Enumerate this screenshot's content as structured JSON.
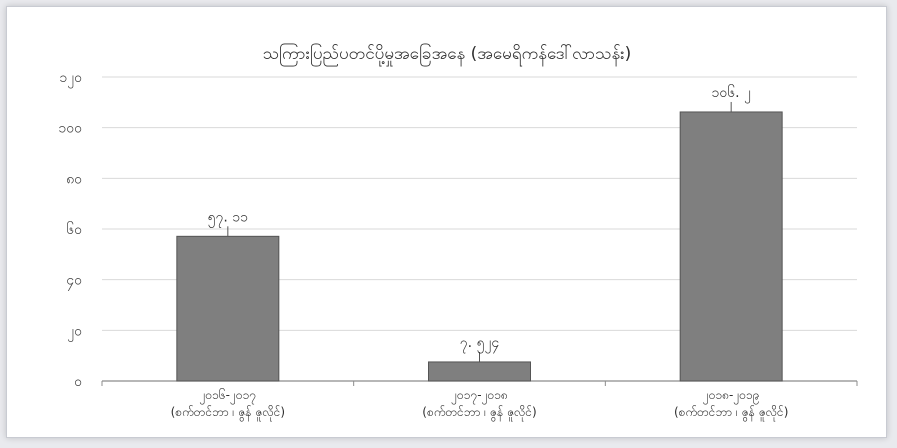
{
  "chart_data": {
    "type": "bar",
    "title": "သကြားပြည်ပတင်ပို့မှုအခြေအနေ (အမေရိကန်ဒေါ်လာသန်း)",
    "xlabel": "",
    "ylabel": "",
    "ylim": [
      0,
      120
    ],
    "yticks": [
      0,
      20,
      40,
      60,
      80,
      100,
      120
    ],
    "ytick_labels": [
      "၀",
      "၂၀",
      "၄၀",
      "၆၀",
      "၈၀",
      "၁၀၀",
      "၁၂၀"
    ],
    "categories": [
      [
        "၂၀၁၆-၂၀၁၇",
        "(စက်တင်ဘာ ၊ ဇွန် ဇူလိုင်)"
      ],
      [
        "၂၀၁၇-၂၀၁၈",
        "(စက်တင်ဘာ ၊ ဇွန် ဇူလိုင်)"
      ],
      [
        "၂၀၁၈-၂၀၁၉",
        "(စက်တင်ဘာ ၊ ဇွန် ဇူလိုင်)"
      ]
    ],
    "values": [
      57.11,
      7.524,
      106.2
    ],
    "value_labels": [
      "၅၇. ၁၁",
      "၇. ၅၂၄",
      "၁၀၆. ၂"
    ],
    "grid": true,
    "legend": "none",
    "colors": {
      "bar": "#7f7f7f",
      "bar_edge": "#555555",
      "grid": "#d9d9d9",
      "axis": "#8c8c8c"
    }
  }
}
